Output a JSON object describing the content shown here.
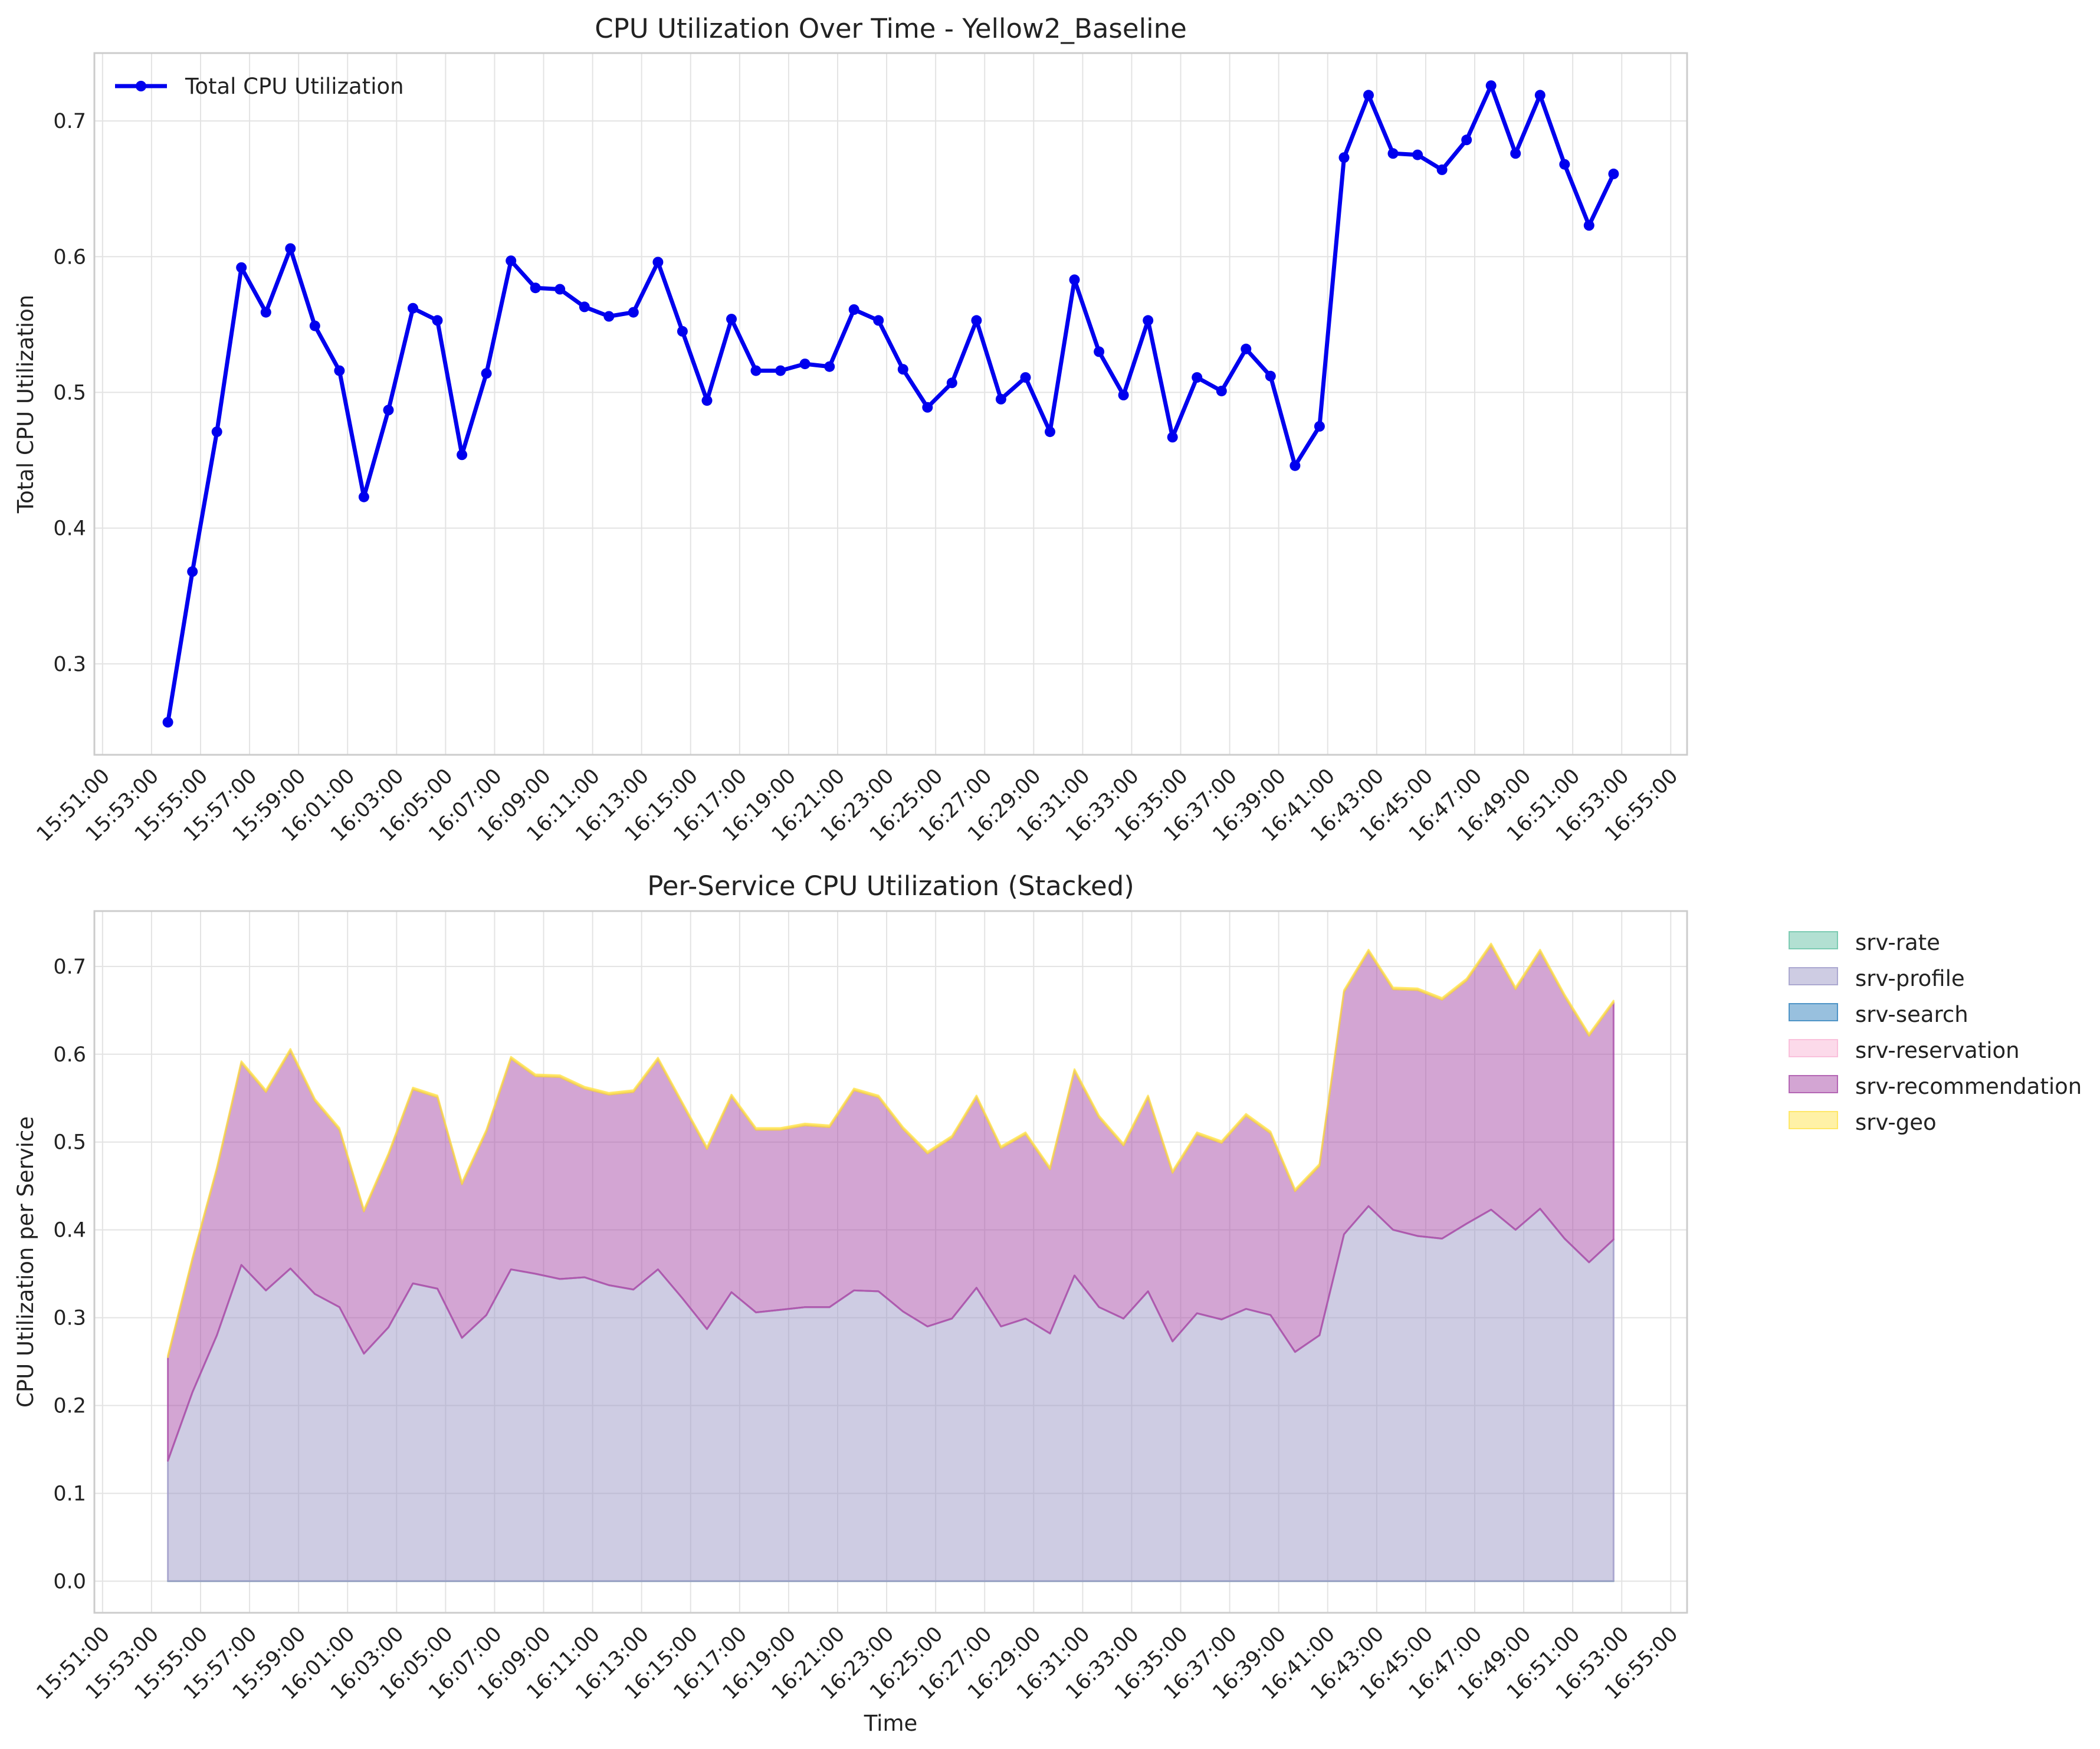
{
  "chart_data": [
    {
      "type": "line",
      "title": "CPU Utilization Over Time - Yellow2_Baseline",
      "xlabel": "",
      "ylabel": "Total CPU Utilization",
      "x_ticks": [
        "15:51:00",
        "15:53:00",
        "15:55:00",
        "15:57:00",
        "15:59:00",
        "16:01:00",
        "16:03:00",
        "16:05:00",
        "16:07:00",
        "16:09:00",
        "16:11:00",
        "16:13:00",
        "16:15:00",
        "16:17:00",
        "16:19:00",
        "16:21:00",
        "16:23:00",
        "16:25:00",
        "16:27:00",
        "16:29:00",
        "16:31:00",
        "16:33:00",
        "16:35:00",
        "16:37:00",
        "16:39:00",
        "16:41:00",
        "16:43:00",
        "16:45:00",
        "16:47:00",
        "16:49:00",
        "16:51:00",
        "16:53:00",
        "16:55:00"
      ],
      "x_range": [
        "15:50:40",
        "16:55:40"
      ],
      "y_ticks": [
        "0.3",
        "0.4",
        "0.5",
        "0.6",
        "0.7"
      ],
      "ylim": [
        0.233,
        0.75
      ],
      "grid": true,
      "legend_position": "top-left",
      "series": [
        {
          "name": "Total CPU Utilization",
          "color": "#0000ee",
          "x": [
            "15:53:40",
            "15:54:40",
            "15:55:40",
            "15:56:40",
            "15:57:40",
            "15:58:40",
            "15:59:40",
            "16:00:40",
            "16:01:40",
            "16:02:40",
            "16:03:40",
            "16:04:40",
            "16:05:40",
            "16:06:40",
            "16:07:40",
            "16:08:40",
            "16:09:40",
            "16:10:40",
            "16:11:40",
            "16:12:40",
            "16:13:40",
            "16:14:40",
            "16:15:40",
            "16:16:40",
            "16:17:40",
            "16:18:40",
            "16:19:40",
            "16:20:40",
            "16:21:40",
            "16:22:40",
            "16:23:40",
            "16:24:40",
            "16:25:40",
            "16:26:40",
            "16:27:40",
            "16:28:40",
            "16:29:40",
            "16:30:40",
            "16:31:40",
            "16:32:40",
            "16:33:40",
            "16:34:40",
            "16:35:40",
            "16:36:40",
            "16:37:40",
            "16:38:40",
            "16:39:40",
            "16:40:40",
            "16:41:40",
            "16:42:40",
            "16:43:40",
            "16:44:40",
            "16:45:40",
            "16:46:40",
            "16:47:40",
            "16:48:40",
            "16:49:40",
            "16:50:40",
            "16:51:40",
            "16:52:40"
          ],
          "values": [
            0.257,
            0.368,
            0.471,
            0.592,
            0.559,
            0.606,
            0.549,
            0.516,
            0.423,
            0.487,
            0.562,
            0.553,
            0.454,
            0.514,
            0.597,
            0.577,
            0.576,
            0.563,
            0.556,
            0.559,
            0.596,
            0.545,
            0.494,
            0.554,
            0.516,
            0.516,
            0.521,
            0.519,
            0.561,
            0.553,
            0.517,
            0.489,
            0.507,
            0.553,
            0.495,
            0.511,
            0.471,
            0.583,
            0.53,
            0.498,
            0.553,
            0.467,
            0.511,
            0.501,
            0.532,
            0.512,
            0.446,
            0.475,
            0.673,
            0.719,
            0.676,
            0.675,
            0.664,
            0.686,
            0.726,
            0.676,
            0.719,
            0.668,
            0.623,
            0.661
          ]
        }
      ]
    },
    {
      "type": "area",
      "stacked": true,
      "title": "Per-Service CPU Utilization (Stacked)",
      "xlabel": "Time",
      "ylabel": "CPU Utilization per Service",
      "x_ticks": [
        "15:51:00",
        "15:53:00",
        "15:55:00",
        "15:57:00",
        "15:59:00",
        "16:01:00",
        "16:03:00",
        "16:05:00",
        "16:07:00",
        "16:09:00",
        "16:11:00",
        "16:13:00",
        "16:15:00",
        "16:17:00",
        "16:19:00",
        "16:21:00",
        "16:23:00",
        "16:25:00",
        "16:27:00",
        "16:29:00",
        "16:31:00",
        "16:33:00",
        "16:35:00",
        "16:37:00",
        "16:39:00",
        "16:41:00",
        "16:43:00",
        "16:45:00",
        "16:47:00",
        "16:49:00",
        "16:51:00",
        "16:53:00",
        "16:55:00"
      ],
      "x_range": [
        "15:50:40",
        "16:55:40"
      ],
      "y_ticks": [
        "0.0",
        "0.1",
        "0.2",
        "0.3",
        "0.4",
        "0.5",
        "0.6",
        "0.7"
      ],
      "ylim": [
        -0.036,
        0.763
      ],
      "grid": true,
      "legend_position": "outside-right",
      "x": [
        "15:53:40",
        "15:54:40",
        "15:55:40",
        "15:56:40",
        "15:57:40",
        "15:58:40",
        "15:59:40",
        "16:00:40",
        "16:01:40",
        "16:02:40",
        "16:03:40",
        "16:04:40",
        "16:05:40",
        "16:06:40",
        "16:07:40",
        "16:08:40",
        "16:09:40",
        "16:10:40",
        "16:11:40",
        "16:12:40",
        "16:13:40",
        "16:14:40",
        "16:15:40",
        "16:16:40",
        "16:17:40",
        "16:18:40",
        "16:19:40",
        "16:20:40",
        "16:21:40",
        "16:22:40",
        "16:23:40",
        "16:24:40",
        "16:25:40",
        "16:26:40",
        "16:27:40",
        "16:28:40",
        "16:29:40",
        "16:30:40",
        "16:31:40",
        "16:32:40",
        "16:33:40",
        "16:34:40",
        "16:35:40",
        "16:36:40",
        "16:37:40",
        "16:38:40",
        "16:39:40",
        "16:40:40",
        "16:41:40",
        "16:42:40",
        "16:43:40",
        "16:44:40",
        "16:45:40",
        "16:46:40",
        "16:47:40",
        "16:48:40",
        "16:49:40",
        "16:50:40",
        "16:51:40",
        "16:52:40"
      ],
      "series": [
        {
          "name": "srv-rate",
          "color": "#66c2a5",
          "values": [
            0,
            0,
            0,
            0,
            0,
            0,
            0,
            0,
            0,
            0,
            0,
            0,
            0,
            0,
            0,
            0,
            0,
            0,
            0,
            0,
            0,
            0,
            0,
            0,
            0,
            0,
            0,
            0,
            0,
            0,
            0,
            0,
            0,
            0,
            0,
            0,
            0,
            0,
            0,
            0,
            0,
            0,
            0,
            0,
            0,
            0,
            0,
            0,
            0,
            0,
            0,
            0,
            0,
            0,
            0,
            0,
            0,
            0,
            0,
            0
          ]
        },
        {
          "name": "srv-profile",
          "color": "#9e9ac8",
          "values": [
            0.137,
            0.215,
            0.28,
            0.36,
            0.331,
            0.356,
            0.327,
            0.312,
            0.259,
            0.289,
            0.339,
            0.333,
            0.277,
            0.303,
            0.355,
            0.35,
            0.344,
            0.346,
            0.337,
            0.332,
            0.355,
            0.322,
            0.287,
            0.329,
            0.306,
            0.309,
            0.312,
            0.312,
            0.331,
            0.33,
            0.307,
            0.29,
            0.299,
            0.334,
            0.29,
            0.299,
            0.282,
            0.348,
            0.312,
            0.299,
            0.33,
            0.273,
            0.305,
            0.298,
            0.31,
            0.303,
            0.261,
            0.28,
            0.395,
            0.427,
            0.4,
            0.393,
            0.39,
            0.407,
            0.423,
            0.4,
            0.424,
            0.39,
            0.363,
            0.389
          ]
        },
        {
          "name": "srv-search",
          "color": "#3182bd",
          "values": [
            0,
            0,
            0,
            0,
            0,
            0,
            0,
            0,
            0,
            0,
            0,
            0,
            0,
            0,
            0,
            0,
            0,
            0,
            0,
            0,
            0,
            0,
            0,
            0,
            0,
            0,
            0,
            0,
            0,
            0,
            0,
            0,
            0,
            0,
            0,
            0,
            0,
            0,
            0,
            0,
            0,
            0,
            0,
            0,
            0,
            0,
            0,
            0,
            0,
            0,
            0,
            0,
            0,
            0,
            0,
            0,
            0,
            0,
            0,
            0
          ]
        },
        {
          "name": "srv-reservation",
          "color": "#f9b5d6",
          "values": [
            0,
            0,
            0,
            0,
            0,
            0,
            0,
            0,
            0,
            0,
            0,
            0,
            0,
            0,
            0,
            0,
            0,
            0,
            0,
            0,
            0,
            0,
            0,
            0,
            0,
            0,
            0,
            0,
            0,
            0,
            0,
            0,
            0,
            0,
            0,
            0,
            0,
            0,
            0,
            0,
            0,
            0,
            0,
            0,
            0,
            0,
            0,
            0,
            0,
            0,
            0,
            0,
            0,
            0,
            0,
            0,
            0,
            0,
            0,
            0
          ]
        },
        {
          "name": "srv-recommendation",
          "color": "#a84ca8",
          "values": [
            0.118,
            0.151,
            0.189,
            0.23,
            0.226,
            0.248,
            0.22,
            0.202,
            0.162,
            0.196,
            0.221,
            0.218,
            0.175,
            0.209,
            0.24,
            0.225,
            0.23,
            0.215,
            0.217,
            0.225,
            0.239,
            0.221,
            0.205,
            0.223,
            0.208,
            0.205,
            0.207,
            0.205,
            0.228,
            0.221,
            0.208,
            0.197,
            0.206,
            0.217,
            0.203,
            0.21,
            0.187,
            0.233,
            0.216,
            0.197,
            0.221,
            0.192,
            0.204,
            0.201,
            0.22,
            0.207,
            0.183,
            0.193,
            0.276,
            0.29,
            0.274,
            0.28,
            0.272,
            0.277,
            0.301,
            0.274,
            0.293,
            0.276,
            0.258,
            0.27
          ]
        },
        {
          "name": "srv-geo",
          "color": "#ffe34d",
          "values": [
            0.002,
            0.002,
            0.002,
            0.002,
            0.002,
            0.002,
            0.002,
            0.002,
            0.002,
            0.002,
            0.002,
            0.002,
            0.002,
            0.002,
            0.002,
            0.002,
            0.002,
            0.002,
            0.002,
            0.002,
            0.002,
            0.002,
            0.002,
            0.002,
            0.002,
            0.002,
            0.002,
            0.002,
            0.002,
            0.002,
            0.002,
            0.002,
            0.002,
            0.002,
            0.002,
            0.002,
            0.002,
            0.002,
            0.002,
            0.002,
            0.002,
            0.002,
            0.002,
            0.002,
            0.002,
            0.002,
            0.002,
            0.002,
            0.002,
            0.002,
            0.002,
            0.002,
            0.002,
            0.002,
            0.002,
            0.002,
            0.002,
            0.002,
            0.002,
            0.002
          ]
        }
      ]
    }
  ]
}
